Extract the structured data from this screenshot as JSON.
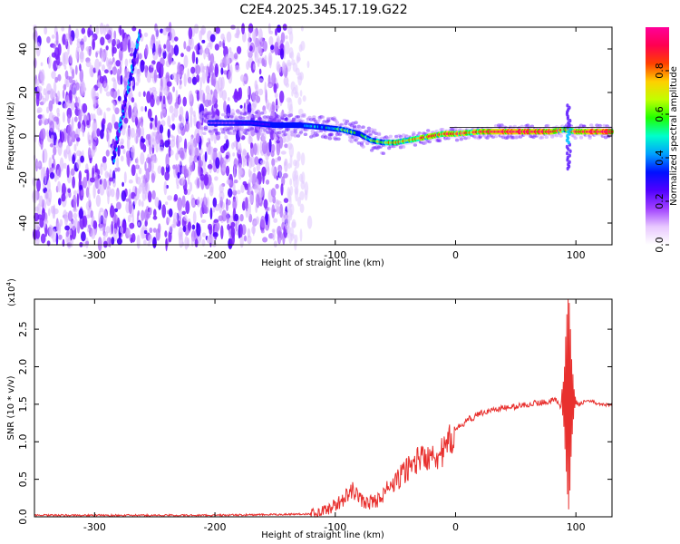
{
  "title": "C2E4.2025.345.17.19.G22",
  "chart_data": [
    {
      "type": "heatmap",
      "panel": "spectrogram",
      "xlabel": "Height of straight line (km)",
      "ylabel": "Frequency (Hz)",
      "xlim": [
        -350,
        130
      ],
      "ylim": [
        -50,
        50
      ],
      "x_ticks": [
        -300,
        -200,
        -100,
        0,
        100
      ],
      "y_ticks": [
        -40,
        -20,
        0,
        20,
        40
      ],
      "colorbar": {
        "label": "Normalized spectral amplitude",
        "range": [
          0.0,
          1.0
        ],
        "ticks": [
          0.0,
          0.2,
          0.4,
          0.6,
          0.8
        ],
        "tick_labels": [
          "0.0",
          "0.2",
          "0.4",
          "0.6",
          "0.8"
        ],
        "colors": [
          "#ffffff",
          "#e8c8ff",
          "#a040ff",
          "#5000ff",
          "#0010ff",
          "#00a0ff",
          "#00ffcc",
          "#20ff00",
          "#c0ff00",
          "#ffd000",
          "#ff4000",
          "#ff0050",
          "#ff0099"
        ]
      },
      "ridge": {
        "x": [
          -200,
          -170,
          -150,
          -130,
          -110,
          -95,
          -80,
          -70,
          -60,
          -50,
          -40,
          -30,
          -20,
          -10,
          0,
          20,
          40,
          60,
          80,
          90,
          100,
          110,
          130
        ],
        "y": [
          6,
          6,
          5,
          5,
          4,
          3,
          1,
          -2,
          -3,
          -3,
          -2,
          -1,
          0,
          1,
          1,
          2,
          2,
          2,
          2,
          3,
          2,
          2,
          2
        ],
        "amplitude": [
          0.15,
          0.25,
          0.3,
          0.35,
          0.45,
          0.55,
          0.5,
          0.6,
          0.65,
          0.7,
          0.75,
          0.8,
          0.8,
          0.85,
          0.85,
          0.9,
          0.95,
          1.0,
          0.95,
          0.7,
          0.95,
          0.95,
          0.95
        ]
      },
      "streak": {
        "x": [
          -285,
          -262
        ],
        "y": [
          -12,
          48
        ]
      },
      "noise_region": {
        "x_end": -140,
        "fade_end": -120
      }
    },
    {
      "type": "line",
      "panel": "snr",
      "xlabel": "Height of straight line (km)",
      "ylabel": "SNR (10 * v/v)",
      "scale_label": "(x10",
      "scale_exp": "4",
      "scale_close": ")",
      "xlim": [
        -350,
        130
      ],
      "ylim": [
        0.0,
        2.9
      ],
      "x_ticks": [
        -300,
        -200,
        -100,
        0,
        100
      ],
      "y_ticks": [
        0.0,
        0.5,
        1.0,
        1.5,
        2.0,
        2.5
      ],
      "y_tick_labels": [
        "0.0",
        "0.5",
        "1.0",
        "1.5",
        "2.0",
        "2.5"
      ],
      "color": "#e8302e",
      "series": [
        {
          "name": "SNR",
          "x": [
            -350,
            -300,
            -250,
            -200,
            -150,
            -120,
            -110,
            -100,
            -90,
            -85,
            -80,
            -75,
            -70,
            -65,
            -60,
            -55,
            -50,
            -45,
            -40,
            -35,
            -30,
            -25,
            -20,
            -15,
            -10,
            -5,
            0,
            5,
            10,
            15,
            20,
            30,
            40,
            50,
            60,
            70,
            80,
            85,
            88,
            90,
            92,
            94,
            95,
            96,
            97,
            98,
            99,
            100,
            102,
            105,
            110,
            120,
            130
          ],
          "y": [
            0.02,
            0.02,
            0.02,
            0.02,
            0.03,
            0.04,
            0.08,
            0.15,
            0.28,
            0.35,
            0.25,
            0.18,
            0.2,
            0.22,
            0.3,
            0.4,
            0.45,
            0.55,
            0.65,
            0.7,
            0.8,
            0.75,
            0.9,
            0.82,
            0.85,
            1.0,
            1.15,
            1.22,
            1.3,
            1.32,
            1.38,
            1.42,
            1.45,
            1.47,
            1.5,
            1.52,
            1.55,
            1.55,
            1.45,
            1.7,
            1.2,
            2.3,
            0.4,
            2.9,
            0.1,
            2.6,
            0.5,
            1.75,
            1.5,
            1.52,
            1.55,
            1.5,
            1.48
          ]
        }
      ]
    }
  ]
}
